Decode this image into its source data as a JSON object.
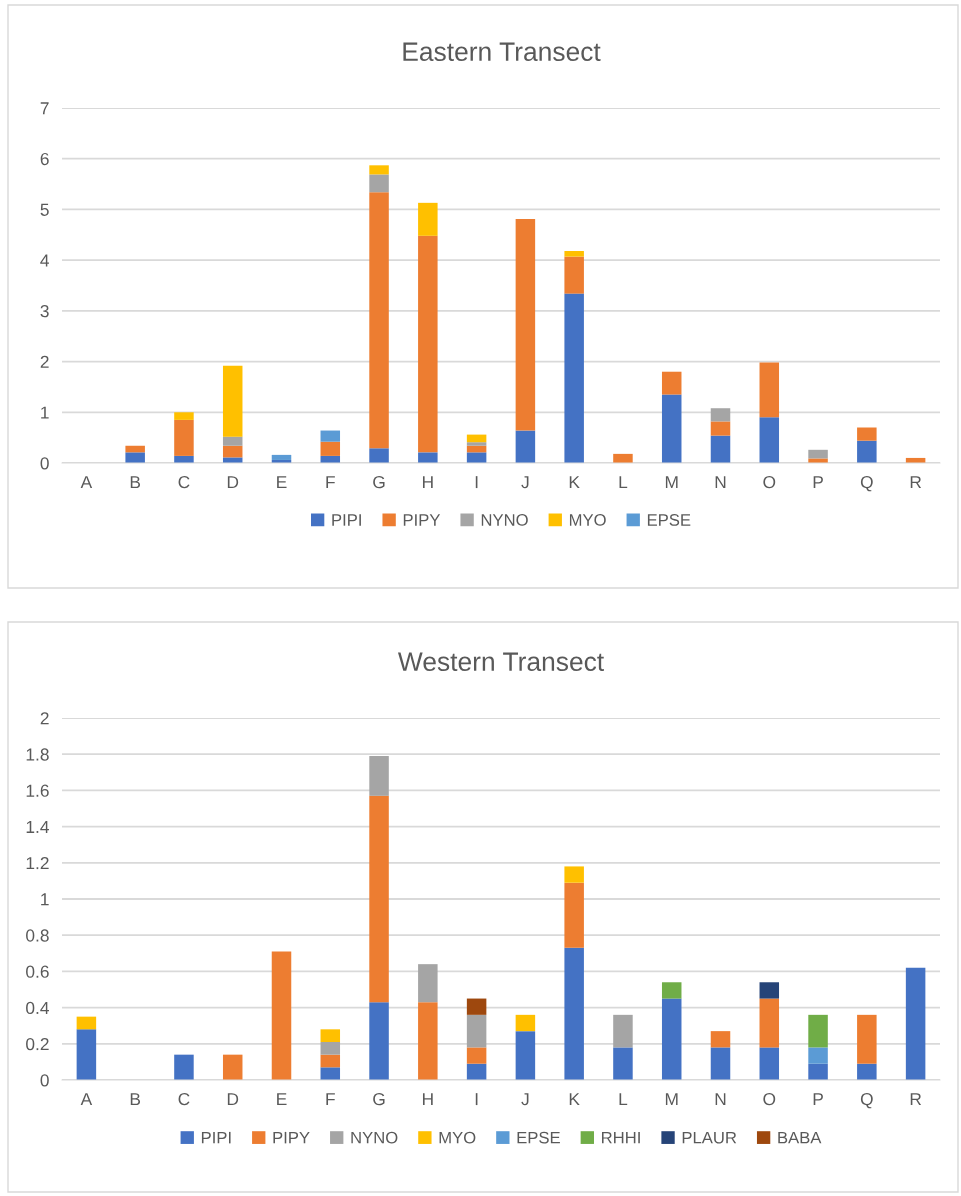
{
  "chart_data": [
    {
      "type": "bar",
      "title": "Eastern Transect",
      "stacked": true,
      "categories": [
        "A",
        "B",
        "C",
        "D",
        "E",
        "F",
        "G",
        "H",
        "I",
        "J",
        "K",
        "L",
        "M",
        "N",
        "O",
        "P",
        "Q",
        "R"
      ],
      "ylim": [
        0,
        7
      ],
      "yticks": [
        0,
        1,
        2,
        3,
        4,
        5,
        6,
        7
      ],
      "grid": "y",
      "legend": "bottom",
      "series": [
        {
          "name": "PIPI",
          "color": "#4472c4",
          "values": [
            null,
            0.21,
            0.14,
            0.11,
            0.06,
            0.14,
            0.29,
            0.21,
            0.21,
            0.64,
            3.34,
            null,
            1.35,
            0.54,
            0.9,
            null,
            0.44,
            null
          ]
        },
        {
          "name": "PIPY",
          "color": "#ed7d31",
          "values": [
            null,
            0.13,
            0.71,
            0.23,
            null,
            0.28,
            5.05,
            4.27,
            0.13,
            4.17,
            0.73,
            0.18,
            0.45,
            0.28,
            1.08,
            0.09,
            0.26,
            0.1
          ]
        },
        {
          "name": "NYNO",
          "color": "#a5a5a5",
          "values": [
            null,
            null,
            null,
            0.18,
            null,
            null,
            0.35,
            null,
            0.07,
            null,
            null,
            null,
            null,
            0.26,
            null,
            0.17,
            null,
            null
          ]
        },
        {
          "name": "MYO",
          "color": "#ffc000",
          "values": [
            null,
            null,
            0.15,
            1.4,
            null,
            null,
            0.18,
            0.65,
            0.15,
            null,
            0.11,
            null,
            null,
            null,
            null,
            null,
            null,
            null
          ]
        },
        {
          "name": "EPSE",
          "color": "#5b9bd5",
          "values": [
            null,
            null,
            null,
            null,
            0.1,
            0.22,
            null,
            null,
            null,
            null,
            null,
            null,
            null,
            null,
            null,
            null,
            null,
            null
          ]
        }
      ]
    },
    {
      "type": "bar",
      "title": "Western Transect",
      "stacked": true,
      "categories": [
        "A",
        "B",
        "C",
        "D",
        "E",
        "F",
        "G",
        "H",
        "I",
        "J",
        "K",
        "L",
        "M",
        "N",
        "O",
        "P",
        "Q",
        "R"
      ],
      "ylim": [
        0,
        2
      ],
      "yticks": [
        0,
        0.2,
        0.4,
        0.6,
        0.8,
        1,
        1.2,
        1.4,
        1.6,
        1.8,
        2
      ],
      "grid": "y",
      "legend": "bottom",
      "series": [
        {
          "name": "PIPI",
          "color": "#4472c4",
          "values": [
            0.28,
            null,
            0.14,
            null,
            null,
            0.07,
            0.43,
            null,
            0.09,
            0.27,
            0.73,
            0.18,
            0.45,
            0.18,
            0.18,
            0.09,
            0.09,
            0.62
          ]
        },
        {
          "name": "PIPY",
          "color": "#ed7d31",
          "values": [
            null,
            null,
            null,
            0.14,
            0.71,
            0.07,
            1.14,
            0.43,
            0.09,
            null,
            0.36,
            null,
            null,
            0.09,
            0.27,
            null,
            0.27,
            null
          ]
        },
        {
          "name": "NYNO",
          "color": "#a5a5a5",
          "values": [
            null,
            null,
            null,
            null,
            null,
            0.07,
            0.22,
            0.21,
            0.18,
            null,
            null,
            0.18,
            null,
            null,
            null,
            null,
            null,
            null
          ]
        },
        {
          "name": "MYO",
          "color": "#ffc000",
          "values": [
            0.07,
            null,
            null,
            null,
            null,
            0.07,
            null,
            null,
            null,
            0.09,
            0.09,
            null,
            null,
            null,
            null,
            null,
            null,
            null
          ]
        },
        {
          "name": "EPSE",
          "color": "#5b9bd5",
          "values": [
            null,
            null,
            null,
            null,
            null,
            null,
            null,
            null,
            null,
            null,
            null,
            null,
            null,
            null,
            null,
            0.09,
            null,
            null
          ]
        },
        {
          "name": "RHHI",
          "color": "#70ad47",
          "values": [
            null,
            null,
            null,
            null,
            null,
            null,
            null,
            null,
            null,
            null,
            null,
            null,
            0.09,
            null,
            null,
            0.18,
            null,
            null
          ]
        },
        {
          "name": "PLAUR",
          "color": "#264478",
          "values": [
            null,
            null,
            null,
            null,
            null,
            null,
            null,
            null,
            null,
            null,
            null,
            null,
            null,
            null,
            0.09,
            null,
            null,
            null
          ]
        },
        {
          "name": "BABA",
          "color": "#9e480e",
          "values": [
            null,
            null,
            null,
            null,
            null,
            null,
            null,
            null,
            0.09,
            null,
            null,
            null,
            null,
            null,
            null,
            null,
            null,
            null
          ]
        }
      ]
    }
  ]
}
